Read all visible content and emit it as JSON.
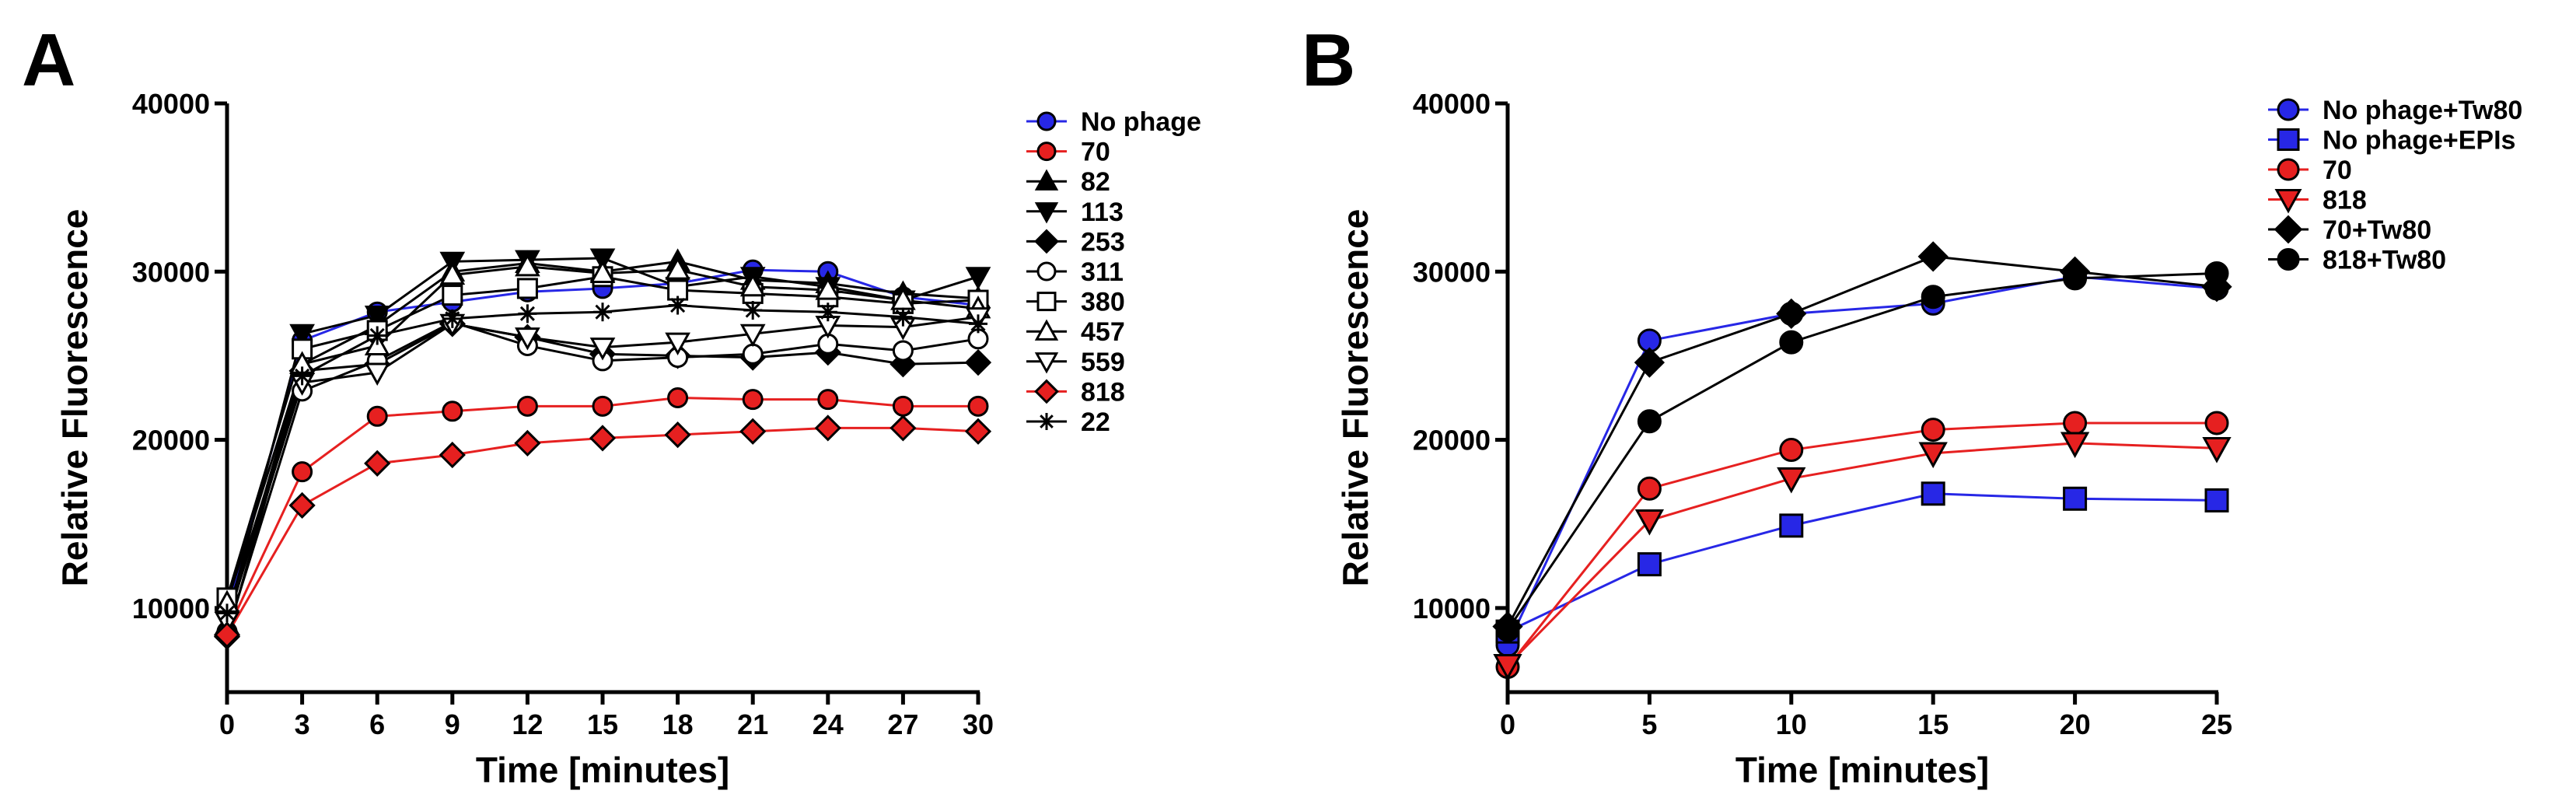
{
  "chart_data": [
    {
      "panel": "A",
      "type": "line",
      "xlabel": "Time [minutes]",
      "ylabel": "Relative Fluorescence",
      "xlim": [
        0,
        30
      ],
      "ylim": [
        5000,
        40000
      ],
      "xticks": [
        0,
        3,
        6,
        9,
        12,
        15,
        18,
        21,
        24,
        27,
        30
      ],
      "yticks": [
        10000,
        20000,
        30000,
        40000
      ],
      "legend_position": "right",
      "x": [
        0,
        3,
        6,
        9,
        12,
        15,
        18,
        21,
        24,
        27,
        30
      ],
      "series": [
        {
          "name": "No phage",
          "marker": "circle",
          "fill": "#2727e6",
          "line": "#2727e6",
          "values": [
            9800,
            25900,
            27600,
            28200,
            28800,
            29000,
            29300,
            30100,
            30000,
            28500,
            28000
          ]
        },
        {
          "name": "70",
          "marker": "circle",
          "fill": "#e62020",
          "line": "#e62020",
          "values": [
            8600,
            18100,
            21400,
            21700,
            22000,
            22000,
            22500,
            22400,
            22400,
            22000,
            22000
          ]
        },
        {
          "name": "82",
          "marker": "triangle",
          "fill": "#000000",
          "line": "#000000",
          "values": [
            9000,
            24500,
            26800,
            30000,
            30500,
            30000,
            30600,
            29500,
            29300,
            28700,
            28400
          ]
        },
        {
          "name": "113",
          "marker": "triangle-down",
          "fill": "#000000",
          "line": "#000000",
          "values": [
            9300,
            26300,
            27400,
            30600,
            30700,
            30800,
            29100,
            29700,
            29100,
            28300,
            29700
          ]
        },
        {
          "name": "253",
          "marker": "diamond",
          "fill": "#000000",
          "line": "#000000",
          "values": [
            8300,
            24100,
            24500,
            26900,
            26100,
            25100,
            25000,
            24900,
            25200,
            24500,
            24600
          ]
        },
        {
          "name": "311",
          "marker": "circle-open",
          "fill": "#ffffff",
          "line": "#000000",
          "values": [
            8500,
            22900,
            24700,
            27000,
            25600,
            24700,
            24900,
            25100,
            25700,
            25300,
            26000
          ]
        },
        {
          "name": "380",
          "marker": "square-open",
          "fill": "#ffffff",
          "line": "#000000",
          "values": [
            10600,
            25400,
            26500,
            28600,
            29000,
            29700,
            28900,
            28700,
            28500,
            28100,
            28300
          ]
        },
        {
          "name": "457",
          "marker": "triangle-open",
          "fill": "#ffffff",
          "line": "#000000",
          "values": [
            10300,
            24500,
            25600,
            29800,
            30300,
            29900,
            30100,
            29100,
            28900,
            28300,
            27800
          ]
        },
        {
          "name": "559",
          "marker": "triangle-down-open",
          "fill": "#ffffff",
          "line": "#000000",
          "values": [
            9200,
            23400,
            24000,
            26900,
            26100,
            25500,
            25800,
            26300,
            26800,
            26700,
            27300
          ]
        },
        {
          "name": "818",
          "marker": "diamond",
          "fill": "#e62020",
          "line": "#e62020",
          "values": [
            8400,
            16100,
            18600,
            19100,
            19800,
            20100,
            20300,
            20500,
            20700,
            20700,
            20500
          ]
        },
        {
          "name": "22",
          "marker": "star",
          "fill": "#000000",
          "line": "#000000",
          "values": [
            9700,
            23800,
            26200,
            27200,
            27500,
            27600,
            28000,
            27700,
            27600,
            27300,
            26900
          ]
        }
      ]
    },
    {
      "panel": "B",
      "type": "line",
      "xlabel": "Time [minutes]",
      "ylabel": "Relative Fluorescence",
      "xlim": [
        0,
        25
      ],
      "ylim": [
        5000,
        40000
      ],
      "xticks": [
        0,
        5,
        10,
        15,
        20,
        25
      ],
      "yticks": [
        10000,
        20000,
        30000,
        40000
      ],
      "legend_position": "top-right",
      "x": [
        0,
        5,
        10,
        15,
        20,
        25
      ],
      "series": [
        {
          "name": "No phage+Tw80",
          "marker": "circle",
          "fill": "#2727e6",
          "line": "#2727e6",
          "values": [
            7800,
            25900,
            27500,
            28100,
            29700,
            29000
          ]
        },
        {
          "name": "No phage+EPIs",
          "marker": "square",
          "fill": "#2727e6",
          "line": "#2727e6",
          "values": [
            8600,
            12600,
            14900,
            16800,
            16500,
            16400
          ]
        },
        {
          "name": "70",
          "marker": "circle",
          "fill": "#e62020",
          "line": "#e62020",
          "values": [
            6500,
            17100,
            19400,
            20600,
            21000,
            21000
          ]
        },
        {
          "name": "818",
          "marker": "triangle-down",
          "fill": "#e62020",
          "line": "#e62020",
          "values": [
            6600,
            15200,
            17700,
            19200,
            19800,
            19500
          ]
        },
        {
          "name": "70+Tw80",
          "marker": "diamond",
          "fill": "#000000",
          "line": "#000000",
          "values": [
            8900,
            24600,
            27500,
            30900,
            30000,
            29100
          ]
        },
        {
          "name": "818+Tw80",
          "marker": "circle",
          "fill": "#000000",
          "line": "#000000",
          "values": [
            8700,
            21100,
            25800,
            28500,
            29600,
            29900
          ]
        }
      ]
    }
  ],
  "panels": {
    "a_letter": "A",
    "b_letter": "B"
  }
}
